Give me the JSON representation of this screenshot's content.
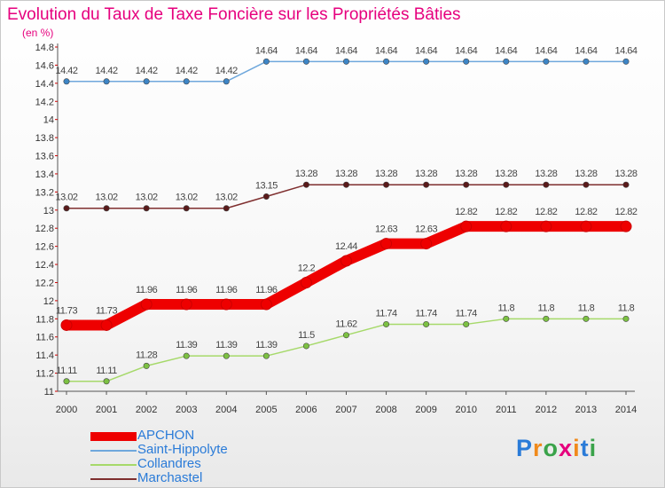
{
  "header": {
    "title": "Evolution du Taux de Taxe Foncière sur les Propriétés Bâties",
    "units": "(en %)"
  },
  "logo": {
    "text": "Proxiti",
    "letter_colors": [
      "#2a7bd8",
      "#f08a1c",
      "#3aa34a",
      "#e6007e",
      "#f08a1c",
      "#2a7bd8",
      "#3aa34a"
    ]
  },
  "colors": {
    "title": "#e6007e",
    "axis": "#555555",
    "grid_tick": "#cc0000",
    "legend_text": "#2a7bd8"
  },
  "chart_data": {
    "type": "line",
    "title": "Evolution du Taux de Taxe Foncière sur les Propriétés Bâties",
    "ylabel": "(en %)",
    "xlabel": "",
    "x": [
      2000,
      2001,
      2002,
      2003,
      2004,
      2005,
      2006,
      2007,
      2008,
      2009,
      2010,
      2011,
      2012,
      2013,
      2014
    ],
    "ylim": [
      11,
      14.8
    ],
    "yticks": [
      11,
      11.2,
      11.4,
      11.6,
      11.8,
      12,
      12.2,
      12.4,
      12.6,
      12.8,
      13,
      13.2,
      13.4,
      13.6,
      13.8,
      14,
      14.2,
      14.4,
      14.6,
      14.8
    ],
    "grid": false,
    "legend_position": "bottom-left",
    "series": [
      {
        "name": "APCHON",
        "color": "#ee0000",
        "marker_color": "#ee0000",
        "thick": true,
        "values": [
          11.73,
          11.73,
          11.96,
          11.96,
          11.96,
          11.96,
          12.2,
          12.44,
          12.63,
          12.63,
          12.82,
          12.82,
          12.82,
          12.82,
          12.82
        ],
        "labels": [
          "11.73",
          "11.73",
          "11.96",
          "11.96",
          "11.96",
          "11.96",
          "12.2",
          "12.44",
          "12.63",
          "12.63",
          "12.82",
          "12.82",
          "12.82",
          "12.82",
          "12.82"
        ]
      },
      {
        "name": "Saint-Hippolyte",
        "color": "#6fa8dc",
        "marker_color": "#3d85c6",
        "thick": false,
        "values": [
          14.42,
          14.42,
          14.42,
          14.42,
          14.42,
          14.64,
          14.64,
          14.64,
          14.64,
          14.64,
          14.64,
          14.64,
          14.64,
          14.64,
          14.64
        ],
        "labels": [
          "14.42",
          "14.42",
          "14.42",
          "14.42",
          "14.42",
          "14.64",
          "14.64",
          "14.64",
          "14.64",
          "14.64",
          "14.64",
          "14.64",
          "14.64",
          "14.64",
          "14.64"
        ]
      },
      {
        "name": "Collandres",
        "color": "#a6d96a",
        "marker_color": "#7cc142",
        "thick": false,
        "values": [
          11.11,
          11.11,
          11.28,
          11.39,
          11.39,
          11.39,
          11.5,
          11.62,
          11.74,
          11.74,
          11.74,
          11.8,
          11.8,
          11.8,
          11.8
        ],
        "labels": [
          "11.11",
          "11.11",
          "11.28",
          "11.39",
          "11.39",
          "11.39",
          "11.5",
          "11.62",
          "11.74",
          "11.74",
          "11.74",
          "11.8",
          "11.8",
          "11.8",
          "11.8"
        ]
      },
      {
        "name": "Marchastel",
        "color": "#7f2f2f",
        "marker_color": "#5a1a1a",
        "thick": false,
        "values": [
          13.02,
          13.02,
          13.02,
          13.02,
          13.02,
          13.15,
          13.28,
          13.28,
          13.28,
          13.28,
          13.28,
          13.28,
          13.28,
          13.28,
          13.28
        ],
        "labels": [
          "13.02",
          "13.02",
          "13.02",
          "13.02",
          "13.02",
          "13.15",
          "13.28",
          "13.28",
          "13.28",
          "13.28",
          "13.28",
          "13.28",
          "13.28",
          "13.28",
          "13.28"
        ]
      }
    ]
  }
}
